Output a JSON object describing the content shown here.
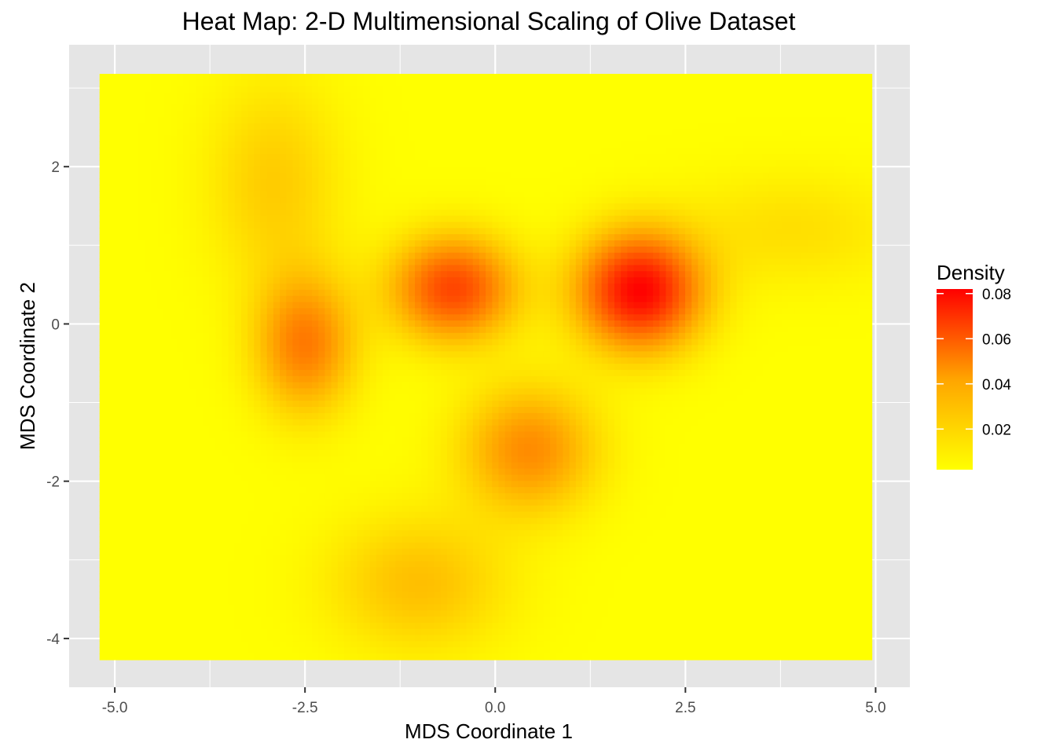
{
  "chart_data": {
    "type": "heatmap",
    "title": "Heat Map: 2-D Multimensional Scaling of Olive Dataset",
    "xlabel": "MDS Coordinate 1",
    "ylabel": "MDS Coordinate 2",
    "xlim": [
      -5.6,
      5.45
    ],
    "ylim": [
      -4.62,
      3.55
    ],
    "x_ticks": [
      -5.0,
      -2.5,
      0.0,
      2.5,
      5.0
    ],
    "x_tick_labels": [
      "-5.0",
      "-2.5",
      "0.0",
      "2.5",
      "5.0"
    ],
    "y_ticks": [
      -4,
      -2,
      0,
      2
    ],
    "y_tick_labels": [
      "-4",
      "-2",
      "0",
      "2"
    ],
    "grid": true,
    "panel_background": "#e5e5e5",
    "grid_color": "#ffffff",
    "data_extent": {
      "x": [
        -5.2,
        4.95
      ],
      "y": [
        -4.27,
        3.18
      ]
    },
    "density_peaks": [
      {
        "x": 1.9,
        "y": 0.42,
        "density": 0.081
      },
      {
        "x": -0.55,
        "y": 0.45,
        "density": 0.06
      },
      {
        "x": -2.5,
        "y": -0.25,
        "density": 0.043
      },
      {
        "x": 0.45,
        "y": -1.6,
        "density": 0.038
      },
      {
        "x": -1.0,
        "y": -3.3,
        "density": 0.022
      },
      {
        "x": -2.9,
        "y": 1.8,
        "density": 0.018
      },
      {
        "x": 3.9,
        "y": 1.2,
        "density": 0.012
      }
    ],
    "legend": {
      "title": "Density",
      "position": "right",
      "ticks": [
        0.08,
        0.06,
        0.04,
        0.02
      ],
      "tick_labels": [
        "0.08",
        "0.06",
        "0.04",
        "0.02"
      ],
      "range": [
        0.002,
        0.082
      ]
    },
    "color_low": "#ffff00",
    "color_high": "#ff0000"
  }
}
